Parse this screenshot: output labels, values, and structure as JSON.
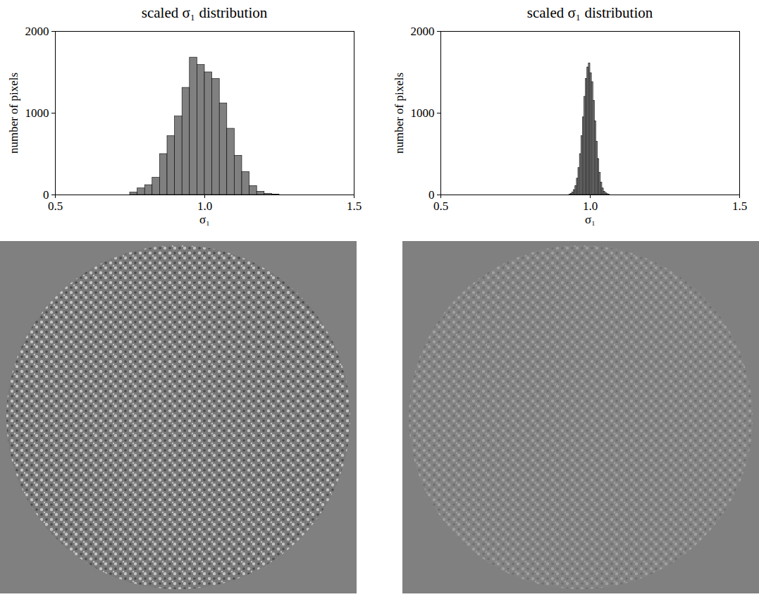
{
  "chart_data": [
    {
      "type": "histogram",
      "title": "scaled σ₁ distribution",
      "xlabel": "σ₁",
      "ylabel": "number of pixels",
      "bins": [
        0.75,
        0.775,
        0.8,
        0.825,
        0.85,
        0.875,
        0.9,
        0.925,
        0.95,
        0.975,
        1.0,
        1.025,
        1.05,
        1.075,
        1.1,
        1.125,
        1.15,
        1.175,
        1.2,
        1.225,
        1.25
      ],
      "counts": [
        30,
        80,
        120,
        210,
        500,
        720,
        960,
        1310,
        1680,
        1590,
        1500,
        1420,
        1120,
        810,
        480,
        280,
        110,
        40,
        15,
        5
      ],
      "color": "#808080",
      "xlim": [
        0.5,
        1.5
      ],
      "xticks": [
        0.5,
        {
          "value": 1,
          "label": "1.0"
        },
        1.5
      ],
      "ylim": [
        0,
        2000
      ],
      "yticks": [
        0,
        1000,
        2000
      ]
    },
    {
      "type": "histogram",
      "title": "scaled σ₁ distribution",
      "xlabel": "σ₁",
      "ylabel": "number of pixels",
      "bins": [
        0.93,
        0.935,
        0.94,
        0.945,
        0.95,
        0.955,
        0.96,
        0.965,
        0.97,
        0.975,
        0.98,
        0.985,
        0.99,
        0.995,
        1.0,
        1.005,
        1.01,
        1.015,
        1.02,
        1.025,
        1.03,
        1.035,
        1.04,
        1.045,
        1.05,
        1.055,
        1.06,
        1.065
      ],
      "counts": [
        5,
        15,
        30,
        60,
        110,
        200,
        330,
        500,
        720,
        950,
        1200,
        1420,
        1560,
        1610,
        1490,
        1380,
        1150,
        900,
        650,
        440,
        270,
        150,
        80,
        40,
        20,
        10,
        5
      ],
      "color": "#808080",
      "xlim": [
        0.5,
        1.5
      ],
      "xticks": [
        0.5,
        {
          "value": 1,
          "label": "1.0"
        },
        1.5
      ],
      "ylim": [
        0,
        2000
      ],
      "yticks": [
        0,
        1000,
        2000
      ]
    }
  ]
}
